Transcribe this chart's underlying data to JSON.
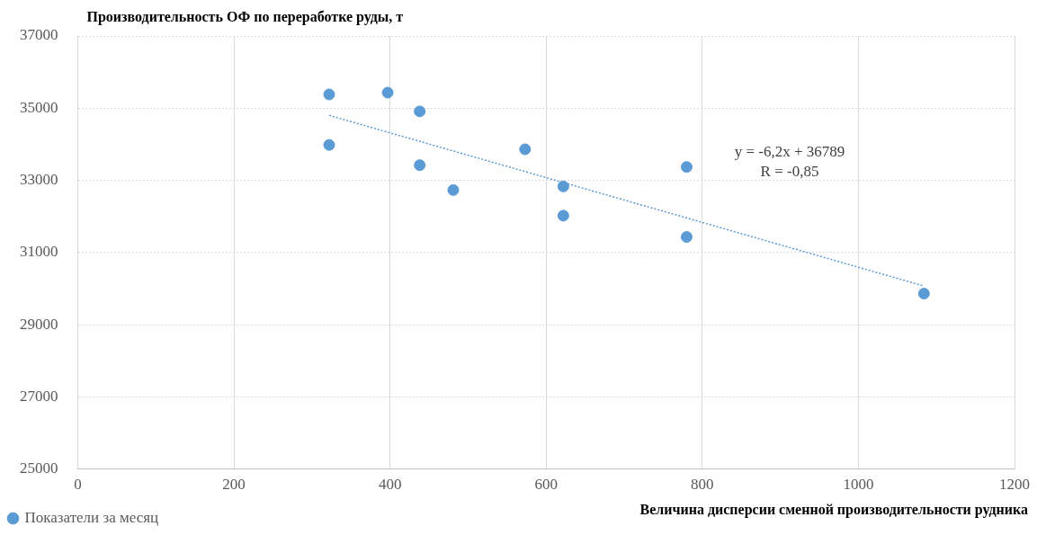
{
  "chart_data": {
    "type": "scatter",
    "xlabel": "Величина дисперсии сменной производительности рудника",
    "ylabel": "Производительность ОФ по переработке руды, т",
    "xlim": [
      0,
      1200
    ],
    "xticks": [
      0,
      200,
      400,
      600,
      800,
      1000,
      1200
    ],
    "ylim": [
      25000,
      37000
    ],
    "yticks": [
      25000,
      27000,
      29000,
      31000,
      33000,
      35000,
      37000
    ],
    "grid": true,
    "legend": "bottom left",
    "marker": "circle",
    "annotations": [
      "y = -6,2x + 36789",
      "R = -0,85"
    ],
    "series": [
      {
        "name": "Показатели за месяц",
        "type": "scatter",
        "color": "#5b9bd5",
        "x": [
          322,
          322,
          397,
          438,
          438,
          481,
          573,
          622,
          622,
          780,
          780,
          1084
        ],
        "values": [
          35380,
          33980,
          35430,
          34910,
          33420,
          32730,
          33860,
          32830,
          32020,
          33370,
          31430,
          29860
        ]
      },
      {
        "type": "line",
        "color": "#5b9bd5",
        "line_style": "dotted",
        "marker": "none",
        "x": [
          322,
          1084
        ],
        "values": [
          34800,
          30070
        ]
      }
    ]
  }
}
